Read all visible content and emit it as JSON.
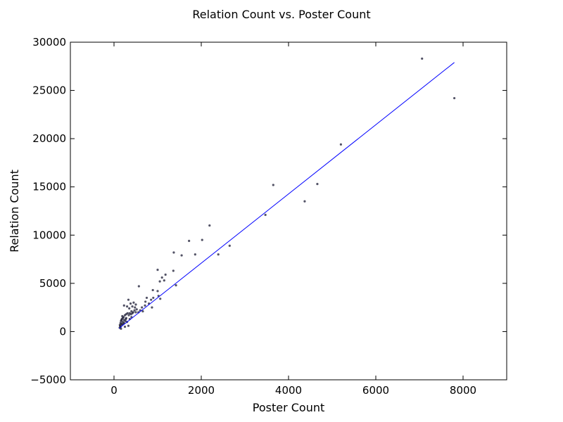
{
  "chart_data": {
    "type": "scatter",
    "title": "Relation Count vs. Poster Count",
    "xlabel": "Poster Count",
    "ylabel": "Relation Count",
    "xlim": [
      -1000,
      9000
    ],
    "ylim": [
      -5000,
      30000
    ],
    "xticks": [
      0,
      2000,
      4000,
      6000,
      8000
    ],
    "xtick_labels": [
      "0",
      "2000",
      "4000",
      "6000",
      "8000"
    ],
    "yticks": [
      -5000,
      0,
      5000,
      10000,
      15000,
      20000,
      25000,
      30000
    ],
    "ytick_labels": [
      "−5000",
      "0",
      "5000",
      "10000",
      "15000",
      "20000",
      "25000",
      "30000"
    ],
    "grid": false,
    "colors": {
      "points": "#1a1a33",
      "fit_line": "#0000ff"
    },
    "series": [
      {
        "type": "scatter",
        "points": [
          [
            7060,
            28300
          ],
          [
            7800,
            24200
          ],
          [
            5200,
            19400
          ],
          [
            4660,
            15300
          ],
          [
            3650,
            15200
          ],
          [
            4370,
            13500
          ],
          [
            3470,
            12100
          ],
          [
            2190,
            11000
          ],
          [
            2020,
            9500
          ],
          [
            1720,
            9400
          ],
          [
            2650,
            8900
          ],
          [
            1370,
            8200
          ],
          [
            1550,
            7900
          ],
          [
            1860,
            8000
          ],
          [
            2390,
            8000
          ],
          [
            1000,
            6400
          ],
          [
            1360,
            6300
          ],
          [
            1180,
            5900
          ],
          [
            1100,
            5600
          ],
          [
            1050,
            5200
          ],
          [
            1150,
            5300
          ],
          [
            1420,
            4800
          ],
          [
            570,
            4700
          ],
          [
            890,
            4300
          ],
          [
            1000,
            4200
          ],
          [
            1020,
            3700
          ],
          [
            1060,
            3400
          ],
          [
            900,
            3500
          ],
          [
            850,
            3300
          ],
          [
            750,
            3500
          ],
          [
            720,
            3100
          ],
          [
            800,
            2900
          ],
          [
            710,
            2700
          ],
          [
            640,
            2500
          ],
          [
            600,
            2200
          ],
          [
            660,
            2100
          ],
          [
            560,
            2000
          ],
          [
            870,
            2500
          ],
          [
            330,
            3300
          ],
          [
            380,
            2900
          ],
          [
            450,
            3000
          ],
          [
            500,
            2800
          ],
          [
            420,
            2600
          ],
          [
            350,
            2400
          ],
          [
            300,
            2600
          ],
          [
            230,
            2700
          ],
          [
            480,
            2500
          ],
          [
            520,
            2300
          ],
          [
            400,
            2100
          ],
          [
            440,
            2000
          ],
          [
            470,
            2200
          ],
          [
            360,
            1900
          ],
          [
            310,
            1900
          ],
          [
            280,
            1800
          ],
          [
            250,
            1700
          ],
          [
            220,
            1500
          ],
          [
            200,
            1400
          ],
          [
            180,
            1300
          ],
          [
            230,
            1200
          ],
          [
            260,
            1100
          ],
          [
            300,
            1000
          ],
          [
            200,
            1000
          ],
          [
            160,
            1100
          ],
          [
            150,
            900
          ],
          [
            170,
            800
          ],
          [
            140,
            600
          ],
          [
            130,
            400
          ],
          [
            150,
            500
          ],
          [
            180,
            700
          ],
          [
            210,
            800
          ],
          [
            330,
            600
          ],
          [
            250,
            500
          ],
          [
            400,
            1500
          ],
          [
            360,
            1300
          ],
          [
            280,
            1400
          ],
          [
            190,
            1600
          ],
          [
            170,
            1200
          ],
          [
            160,
            300
          ],
          [
            135,
            700
          ],
          [
            230,
            900
          ],
          [
            270,
            1300
          ],
          [
            340,
            1700
          ],
          [
            390,
            1800
          ],
          [
            420,
            1900
          ],
          [
            500,
            2000
          ]
        ]
      },
      {
        "type": "line",
        "points": [
          [
            120,
            350
          ],
          [
            7800,
            27900
          ]
        ]
      }
    ]
  }
}
